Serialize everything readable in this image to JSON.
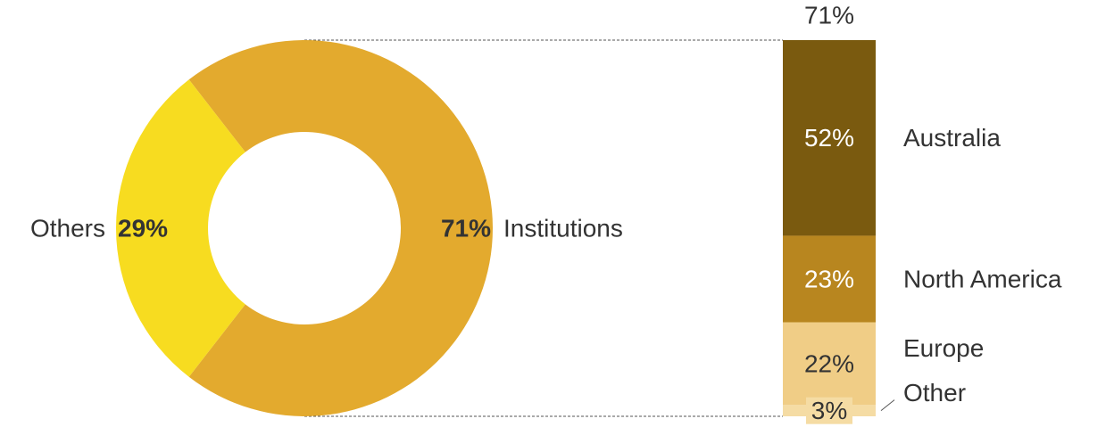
{
  "chart_data": [
    {
      "type": "donut",
      "categories": [
        "Institutions",
        "Others"
      ],
      "values": [
        71,
        29
      ],
      "value_labels": [
        "71%",
        "29%"
      ],
      "colors": [
        "#e3aa2e",
        "#f7dc20"
      ]
    },
    {
      "type": "stacked_bar",
      "total": 71,
      "total_label": "71%",
      "categories": [
        "Australia",
        "North America",
        "Europe",
        "Other"
      ],
      "values": [
        52,
        23,
        22,
        3
      ],
      "value_labels": [
        "52%",
        "23%",
        "22%",
        "3%"
      ],
      "colors": [
        "#7a5a0f",
        "#b8861f",
        "#f0cd86",
        "#f5dca4"
      ]
    }
  ]
}
